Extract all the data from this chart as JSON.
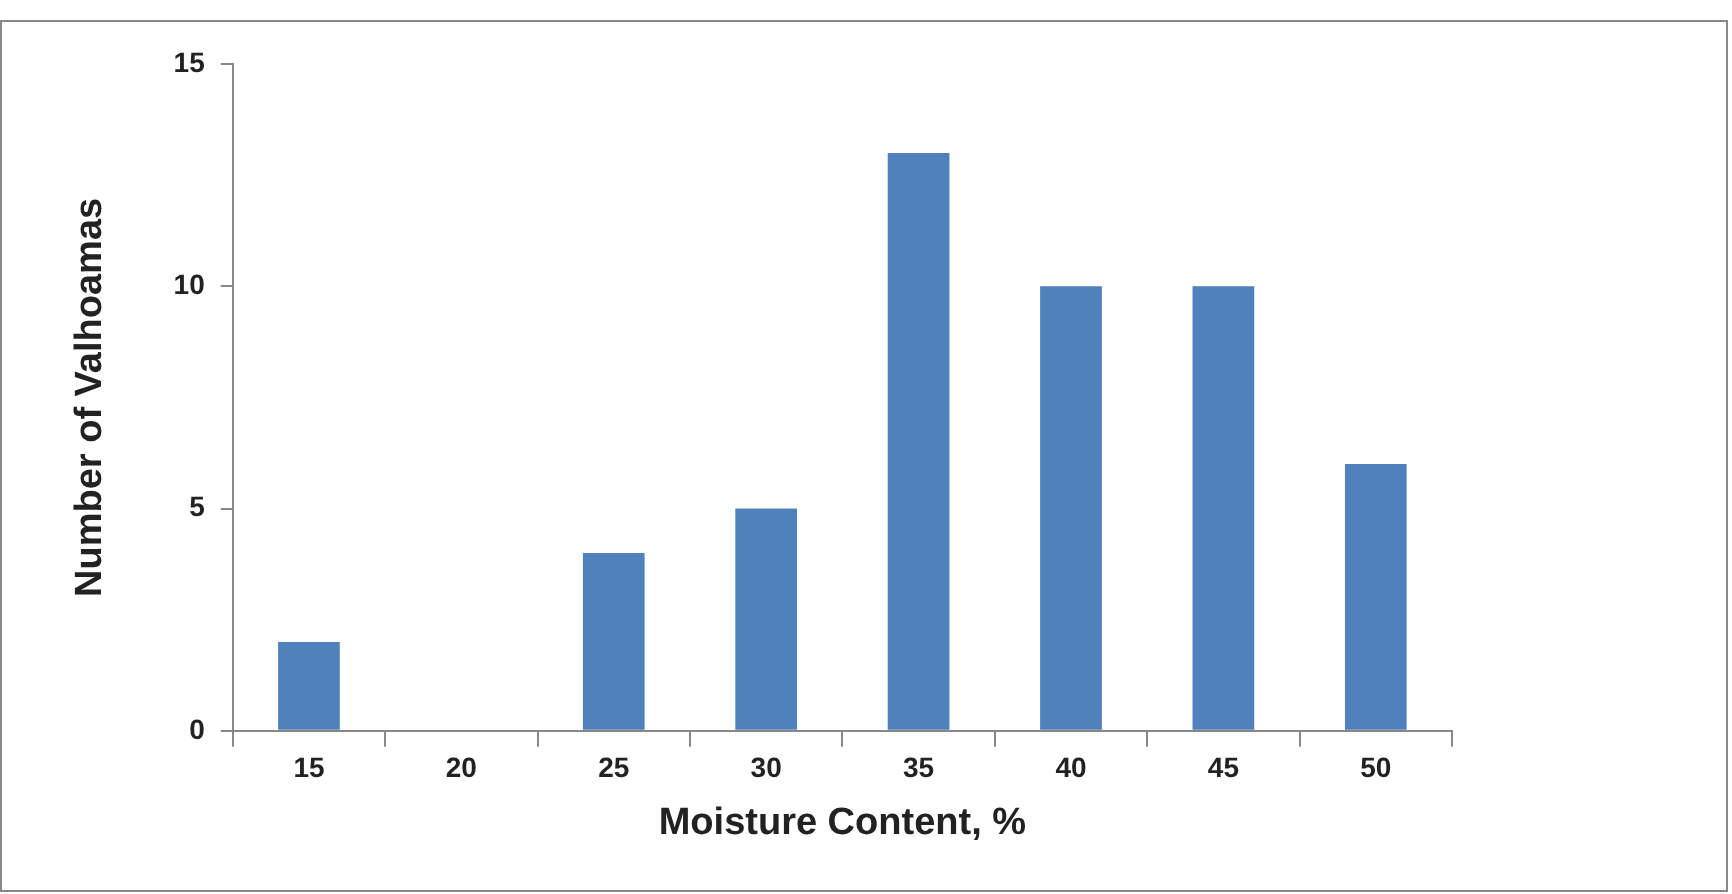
{
  "chart_data": {
    "type": "bar",
    "xlabel": "Moisture Content, %",
    "ylabel": "Number of Valhoamas",
    "categories": [
      "15",
      "20",
      "25",
      "30",
      "35",
      "40",
      "45",
      "50"
    ],
    "values": [
      2,
      0,
      4,
      5,
      13,
      10,
      10,
      6
    ],
    "color": "#4f81bd",
    "ylim": [
      0,
      15
    ],
    "yticks": [
      0,
      5,
      10,
      15
    ],
    "grid": false,
    "legend": false
  }
}
